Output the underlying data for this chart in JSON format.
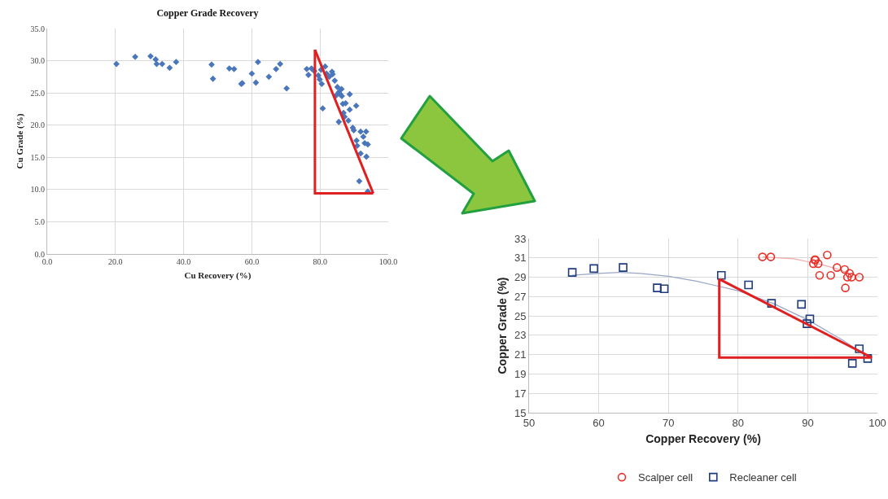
{
  "chart_data": [
    {
      "type": "scatter",
      "title": "Copper Grade Recovery",
      "xlabel": "Cu Recovery (%)",
      "ylabel": "Cu Grade (%)",
      "grid": true,
      "legend": false,
      "marker": "diamond",
      "xlim": [
        0,
        100
      ],
      "xticks": [
        {
          "value": 0,
          "label": "0.0"
        },
        {
          "value": 20,
          "label": "20.0"
        },
        {
          "value": 40,
          "label": "40.0"
        },
        {
          "value": 60,
          "label": "60.0"
        },
        {
          "value": 80,
          "label": "80.0"
        },
        {
          "value": 100,
          "label": "100.0"
        }
      ],
      "ylim": [
        0,
        35
      ],
      "yticks": [
        {
          "value": 0,
          "label": "0.0"
        },
        {
          "value": 5,
          "label": "5.0"
        },
        {
          "value": 10,
          "label": "10.0"
        },
        {
          "value": 15,
          "label": "15.0"
        },
        {
          "value": 20,
          "label": "20.0"
        },
        {
          "value": 25,
          "label": "25.0"
        },
        {
          "value": 30,
          "label": "30.0"
        },
        {
          "value": 35,
          "label": "35.0"
        }
      ],
      "series": [
        {
          "color": "#4a76bb",
          "x": [
            20.3,
            25.8,
            30.3,
            31.8,
            32.1,
            33.7,
            35.9,
            37.8,
            48.2,
            48.6,
            53.4,
            54.8,
            56.9,
            57.2,
            60.0,
            61.2,
            61.8,
            65.0,
            67.1,
            68.3,
            70.2,
            76.1,
            76.6,
            77.5,
            78.3,
            79.5,
            79.9,
            80.3,
            80.5,
            81.5,
            81.9,
            82.7,
            83.5,
            83.7,
            84.3,
            80.8,
            85.1,
            85.5,
            85.9,
            86.3,
            86.4,
            84.7,
            85.5,
            86.7,
            87.5,
            86.9,
            87.2,
            88.7,
            88.7,
            88.3,
            90.6,
            89.6,
            89.9,
            90.7,
            90.9,
            91.9,
            92.7,
            93.5,
            93.1,
            94.0,
            91.9,
            93.6,
            91.5,
            94.0
          ],
          "values": [
            29.5,
            30.6,
            30.7,
            30.2,
            29.5,
            29.5,
            28.9,
            29.8,
            29.4,
            27.2,
            28.8,
            28.7,
            26.4,
            26.5,
            28.0,
            26.6,
            29.8,
            27.5,
            28.7,
            29.5,
            25.7,
            28.7,
            27.8,
            28.8,
            28.4,
            27.7,
            27.1,
            28.6,
            26.4,
            29.1,
            28.0,
            27.5,
            28.3,
            27.9,
            26.9,
            22.6,
            25.9,
            25.1,
            24.8,
            25.6,
            24.5,
            24.6,
            20.5,
            23.3,
            23.4,
            21.9,
            21.3,
            24.8,
            22.4,
            20.7,
            23.0,
            19.6,
            19.2,
            17.6,
            16.8,
            19.0,
            18.2,
            19.0,
            17.2,
            17.0,
            15.6,
            15.1,
            11.3,
            9.7
          ]
        },
        {
          "type": "line",
          "color": "#e02020",
          "marker": "none",
          "line_style": "solid",
          "x": [
            78.5,
            78.5,
            95.6
          ],
          "values": [
            31.7,
            9.4,
            9.4
          ]
        },
        {
          "type": "line",
          "color": "#e02020",
          "marker": "none",
          "line_style": "solid",
          "x": [
            78.5,
            95.6
          ],
          "values": [
            31.7,
            9.4
          ]
        }
      ]
    },
    {
      "type": "scatter",
      "xlabel": "Copper Recovery (%)",
      "ylabel": "Copper Grade (%)",
      "grid": true,
      "legend": "bottom",
      "xlim": [
        50,
        100
      ],
      "xticks": [
        50,
        60,
        70,
        80,
        90,
        100
      ],
      "ylim": [
        15,
        33
      ],
      "yticks": [
        15,
        17,
        19,
        21,
        23,
        25,
        27,
        29,
        31,
        33
      ],
      "series": [
        {
          "type": "line",
          "color": "#f2a8a8",
          "marker": "none",
          "line_style": "solid",
          "x": [
            83.5,
            86,
            88,
            90,
            92,
            94,
            96,
            97.4
          ],
          "values": [
            31.1,
            31.0,
            30.9,
            30.6,
            30.3,
            29.9,
            29.4,
            29.1
          ]
        },
        {
          "type": "line",
          "color": "#9aa6c8",
          "marker": "none",
          "line_style": "solid",
          "x": [
            56.2,
            60,
            63,
            66,
            70,
            74,
            77,
            80,
            85,
            90,
            95,
            98.6
          ],
          "values": [
            29.2,
            29.4,
            29.5,
            29.4,
            29.1,
            28.6,
            28.1,
            27.6,
            26.3,
            24.6,
            22.5,
            20.8
          ]
        },
        {
          "name": "Scalper cell",
          "color": "#e8302a",
          "marker": "circle",
          "x": [
            83.5,
            84.7,
            91.0,
            91.1,
            90.8,
            91.5,
            91.7,
            92.8,
            93.3,
            94.2,
            95.3,
            96.0,
            95.7,
            96.3,
            97.4,
            95.4
          ],
          "values": [
            31.1,
            31.1,
            30.8,
            30.8,
            30.4,
            30.4,
            29.2,
            31.3,
            29.2,
            30.0,
            29.8,
            29.4,
            29.0,
            29.0,
            29.0,
            27.9
          ]
        },
        {
          "name": "Recleaner cell",
          "color": "#1f3d7a",
          "marker": "square",
          "x": [
            56.2,
            59.3,
            63.5,
            68.4,
            69.2,
            69.4,
            77.6,
            81.5,
            84.8,
            89.1,
            90.3,
            89.9,
            97.4,
            96.4,
            98.6
          ],
          "values": [
            29.5,
            29.9,
            30.0,
            27.9,
            null,
            27.8,
            29.2,
            28.2,
            26.3,
            26.2,
            24.7,
            24.2,
            21.6,
            20.1,
            20.6
          ]
        },
        {
          "type": "line",
          "color": "#e02020",
          "marker": "none",
          "line_style": "solid",
          "x": [
            77.3,
            77.3,
            99.2
          ],
          "values": [
            28.8,
            20.7,
            20.7
          ]
        },
        {
          "type": "line",
          "color": "#e02020",
          "marker": "none",
          "line_style": "solid",
          "x": [
            77.3,
            99.2
          ],
          "values": [
            28.8,
            20.7
          ]
        }
      ]
    }
  ]
}
